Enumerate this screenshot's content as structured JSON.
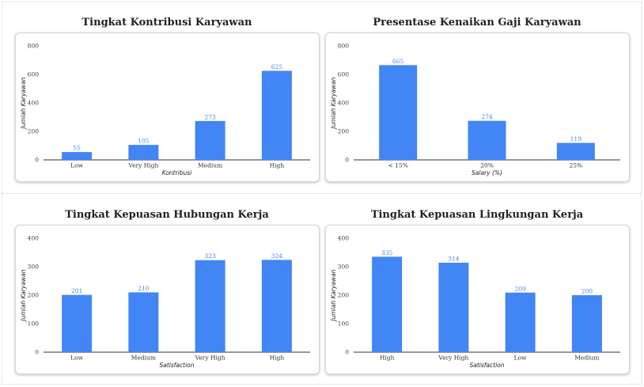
{
  "chart_data": [
    {
      "type": "bar",
      "title": "Tingkat Kontribusi Karyawan",
      "xlabel": "Kontribusi",
      "ylabel": "Jumlah Karyawan",
      "categories": [
        "Low",
        "Very High",
        "Medium",
        "High"
      ],
      "values": [
        55,
        105,
        273,
        625
      ],
      "ylim": [
        0,
        800
      ],
      "yticks": [
        0,
        200,
        400,
        600,
        800
      ],
      "color": "#4285f4"
    },
    {
      "type": "bar",
      "title": "Presentase Kenaikan Gaji Karyawan",
      "xlabel": "Salary (%)",
      "ylabel": "Jumlah Karyawan",
      "categories": [
        "< 15%",
        "20%",
        "25%"
      ],
      "values": [
        665,
        274,
        119
      ],
      "ylim": [
        0,
        800
      ],
      "yticks": [
        0,
        200,
        400,
        600,
        800
      ],
      "color": "#4285f4"
    },
    {
      "type": "bar",
      "title": "Tingkat Kepuasan Hubungan Kerja",
      "xlabel": "Satisfaction",
      "ylabel": "Jumlah Karyawan",
      "categories": [
        "Low",
        "Medium",
        "Very High",
        "High"
      ],
      "values": [
        201,
        210,
        323,
        324
      ],
      "ylim": [
        0,
        400
      ],
      "yticks": [
        0,
        100,
        200,
        300,
        400
      ],
      "color": "#4285f4"
    },
    {
      "type": "bar",
      "title": "Tingkat Kepuasan Lingkungan Kerja",
      "xlabel": "Satisfaction",
      "ylabel": "Jumlah Karyawan",
      "categories": [
        "High",
        "Very High",
        "Low",
        "Medium"
      ],
      "values": [
        335,
        314,
        209,
        200
      ],
      "ylim": [
        0,
        400
      ],
      "yticks": [
        0,
        100,
        200,
        300,
        400
      ],
      "color": "#4285f4"
    }
  ]
}
